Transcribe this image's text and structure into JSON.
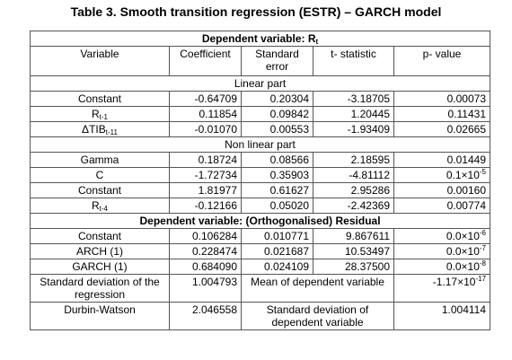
{
  "title": "Table 3. Smooth transition regression (ESTR) – GARCH model",
  "table": {
    "columns": [
      "Variable",
      "Coefficient",
      "Standard error",
      "t- statistic",
      "p- value"
    ],
    "top": {
      "text": "Dependent variable: R",
      "sub": "t"
    },
    "rows": [
      {
        "part": "Linear part"
      },
      {
        "cells": [
          "Constant",
          "-0.64709",
          "0.20304",
          "-3.18705",
          "0.00073"
        ]
      },
      {
        "cells": [
          {
            "text": "R",
            "sub": "t-1"
          },
          "0.11854",
          "0.09842",
          "1.20445",
          "0.11431"
        ]
      },
      {
        "cells": [
          {
            "text": "ΔTIB",
            "sub": "t-11"
          },
          "-0.01070",
          "0.00553",
          "-1.93409",
          "0.02665"
        ]
      },
      {
        "part": "Non linear part"
      },
      {
        "cells": [
          "Gamma",
          "0.18724",
          "0.08566",
          "2.18595",
          "0.01449"
        ]
      },
      {
        "cells": [
          "C",
          "-1.72734",
          "0.35903",
          "-4.81112",
          {
            "text": "0.1×10",
            "sup": "-5"
          }
        ]
      },
      {
        "cells": [
          "Constant",
          "1.81977",
          "0.61627",
          "2.95286",
          "0.00160"
        ]
      },
      {
        "cells": [
          {
            "text": "R",
            "sub": "t-4"
          },
          "-0.12166",
          "0.05020",
          "-2.42369",
          "0.00774"
        ]
      },
      {
        "dependent": "Dependent variable: (Orthogonalised) Residual"
      },
      {
        "cells": [
          "Constant",
          "0.106284",
          "0.010771",
          "9.867611",
          {
            "text": "0.0×10",
            "sup": "-6"
          }
        ]
      },
      {
        "cells": [
          "ARCH (1)",
          "0.228474",
          "0.021687",
          "10.53497",
          {
            "text": "0.0×10",
            "sup": "-7"
          }
        ]
      },
      {
        "cells": [
          "GARCH (1)",
          "0.684090",
          "0.024109",
          "28.37500",
          {
            "text": "0.0×10",
            "sup": "-8"
          }
        ]
      },
      {
        "cells": [
          "Standard deviation of the regression",
          "1.004793",
          "Mean of dependent variable",
          {
            "text": "-1.17×10",
            "sup": "-17"
          }
        ]
      },
      {
        "cells": [
          "Durbin-Watson",
          "2.046558",
          "Standard deviation of dependent variable",
          "1.004114"
        ]
      }
    ]
  }
}
